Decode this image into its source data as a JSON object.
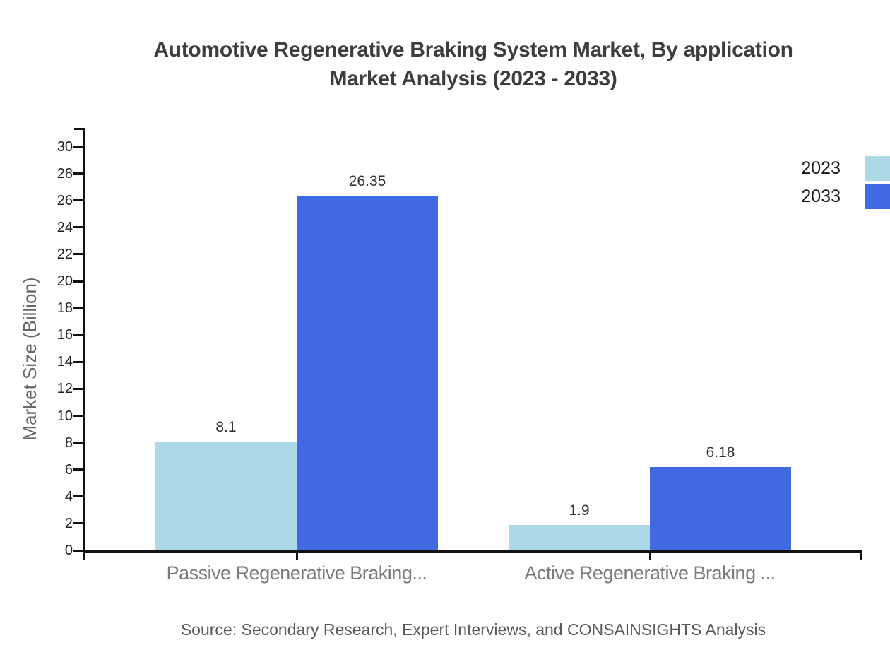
{
  "title": {
    "line1": "Automotive Regenerative Braking System Market, By application",
    "line2": "Market Analysis (2023 - 2033)"
  },
  "y_axis": {
    "label": "Market Size (Billion)",
    "ticks": [
      0,
      2,
      4,
      6,
      8,
      10,
      12,
      14,
      16,
      18,
      20,
      22,
      24,
      26,
      28,
      30
    ]
  },
  "legend": [
    {
      "label": "2023",
      "color": "#ADD8E6"
    },
    {
      "label": "2033",
      "color": "#4169E1"
    }
  ],
  "chart_data": {
    "type": "bar",
    "title": "Automotive Regenerative Braking System Market, By application Market Analysis (2023 - 2033)",
    "categories": [
      "Passive Regenerative Braking...",
      "Active Regenerative Braking ..."
    ],
    "series": [
      {
        "name": "2023",
        "color": "#ADD8E6",
        "values": [
          8.1,
          1.9
        ]
      },
      {
        "name": "2033",
        "color": "#4169E1",
        "values": [
          26.35,
          6.18
        ]
      }
    ],
    "xlabel": "",
    "ylabel": "Market Size (Billion)",
    "ylim": [
      0,
      31
    ],
    "ytick_step": 2,
    "grid": false,
    "legend_position": "top-right",
    "value_labels": true
  },
  "source": "Source: Secondary Research, Expert Interviews, and CONSAINSIGHTS Analysis"
}
